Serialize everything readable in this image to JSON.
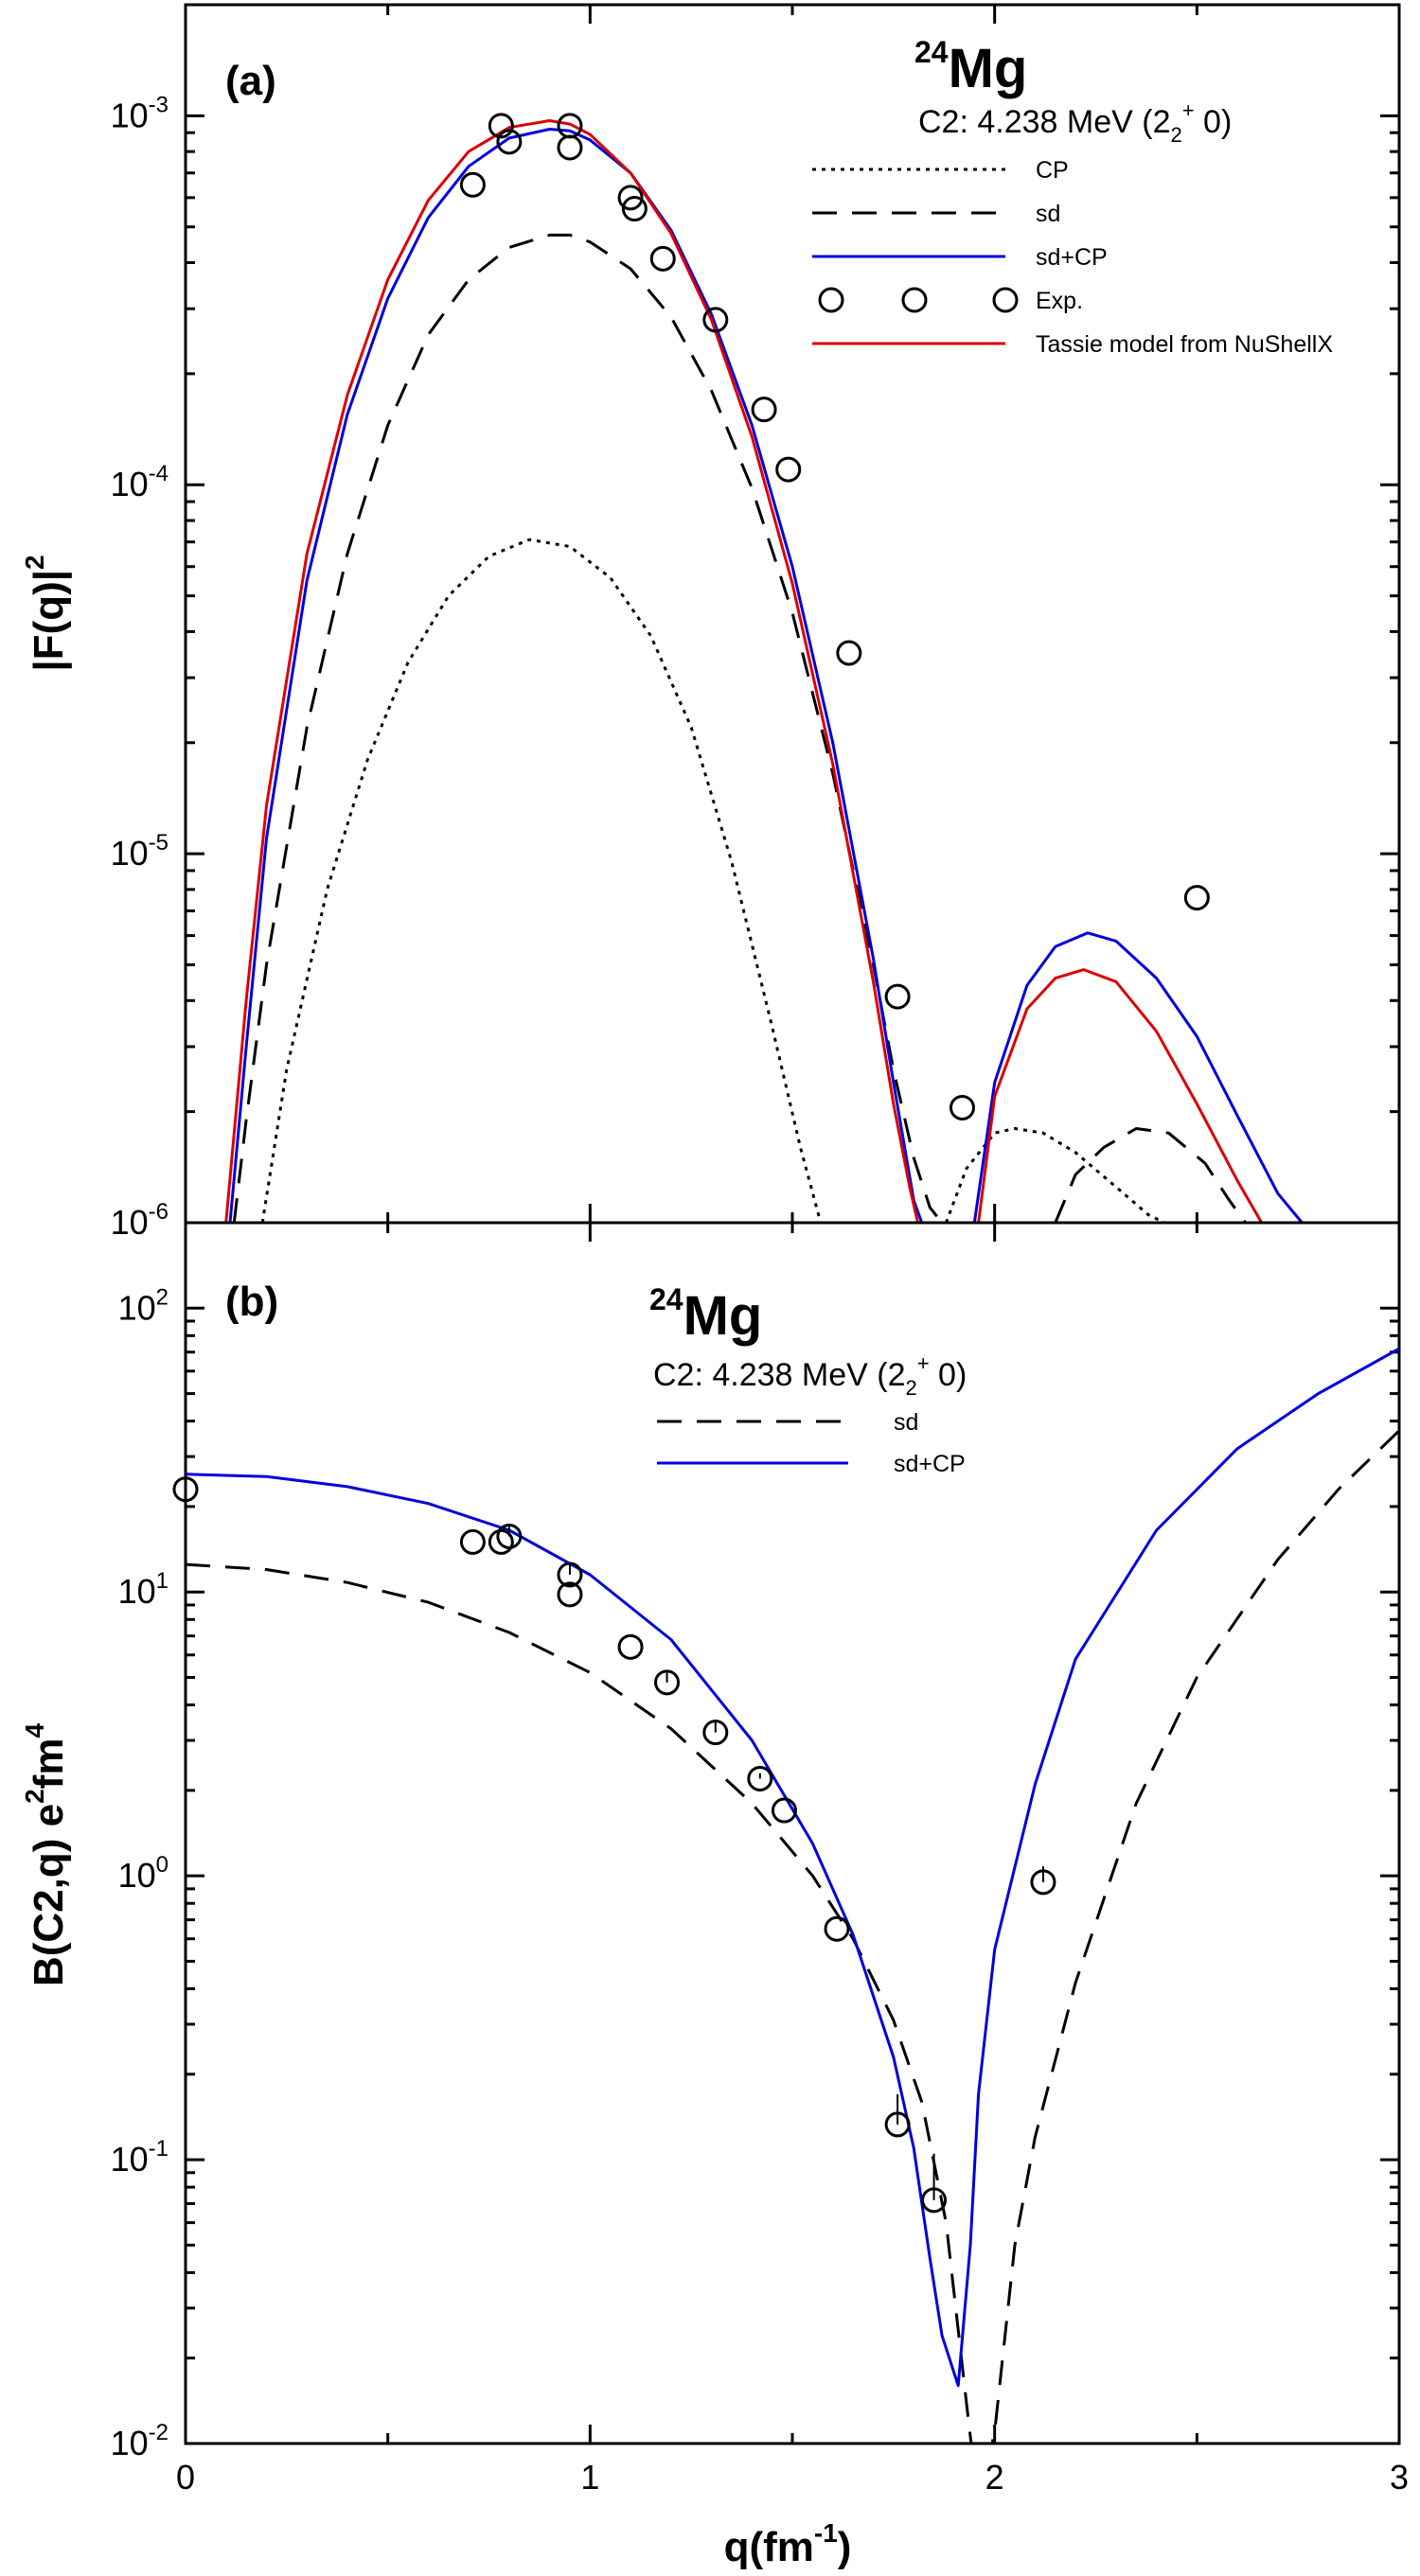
{
  "chart_data": [
    {
      "panel": "a",
      "type": "line",
      "panel_label": "(a)",
      "nucleus": {
        "mass_number": "24",
        "symbol": "Mg"
      },
      "transition": {
        "text": "C2: 4.238 MeV (2",
        "sub": "2",
        "sup": "+",
        "tail": " 0)"
      },
      "ylabel": {
        "main": "|F(q)|",
        "sup": "2"
      },
      "xlabel": "",
      "yscale": "log",
      "xlim": [
        0,
        3
      ],
      "ylim": [
        1e-06,
        0.002
      ],
      "y_ticks": [
        {
          "value": 0.001,
          "base": "10",
          "exp": "-3"
        },
        {
          "value": 0.0001,
          "base": "10",
          "exp": "-4"
        },
        {
          "value": 1e-05,
          "base": "10",
          "exp": "-5"
        },
        {
          "value": 1e-06,
          "base": "10",
          "exp": "-6"
        }
      ],
      "legend": [
        {
          "label": "CP",
          "style": "dotted",
          "color": "#000000"
        },
        {
          "label": "sd",
          "style": "dashed",
          "color": "#000000"
        },
        {
          "label": "sd+CP",
          "style": "solid",
          "color": "#0000dd"
        },
        {
          "label": "Exp.",
          "style": "markers",
          "color": "#000000"
        },
        {
          "label": "Tassie model from NuShellX",
          "style": "solid",
          "color": "#dd0000"
        }
      ],
      "series": [
        {
          "name": "CP",
          "style": "dotted",
          "color": "#000000",
          "x": [
            0.19,
            0.25,
            0.35,
            0.45,
            0.55,
            0.65,
            0.75,
            0.85,
            0.95,
            1.05,
            1.15,
            1.25,
            1.35,
            1.45,
            1.52,
            1.57
          ],
          "y": [
            1e-06,
            2.6e-06,
            8e-06,
            1.8e-05,
            3.3e-05,
            5e-05,
            6.4e-05,
            7.1e-05,
            6.8e-05,
            5.6e-05,
            3.9e-05,
            2.2e-05,
            9.5e-06,
            3.4e-06,
            1.6e-06,
            1e-06
          ]
        },
        {
          "name": "CP (second lobe)",
          "style": "dotted",
          "color": "#000000",
          "x": [
            1.88,
            1.93,
            2.0,
            2.05,
            2.12,
            2.2,
            2.3,
            2.38,
            2.42
          ],
          "y": [
            1e-06,
            1.4e-06,
            1.75e-06,
            1.8e-06,
            1.75e-06,
            1.55e-06,
            1.25e-06,
            1.05e-06,
            1e-06
          ]
        },
        {
          "name": "sd",
          "style": "dashed",
          "color": "#000000",
          "x": [
            0.12,
            0.15,
            0.2,
            0.3,
            0.4,
            0.5,
            0.6,
            0.7,
            0.8,
            0.9,
            0.95,
            1.0,
            1.1,
            1.2,
            1.3,
            1.4,
            1.5,
            1.6,
            1.7,
            1.75,
            1.8,
            1.84,
            1.87
          ],
          "y": [
            1e-06,
            1.9e-06,
            5e-06,
            2.2e-05,
            6.5e-05,
            0.000145,
            0.000255,
            0.00036,
            0.00044,
            0.000475,
            0.000475,
            0.000455,
            0.000385,
            0.000285,
            0.00018,
            9.8e-05,
            4.5e-05,
            1.65e-05,
            5e-06,
            2.6e-06,
            1.5e-06,
            1.1e-06,
            1e-06
          ]
        },
        {
          "name": "sd (second lobe)",
          "style": "dashed",
          "color": "#000000",
          "x": [
            2.15,
            2.2,
            2.27,
            2.35,
            2.43,
            2.52,
            2.58,
            2.62
          ],
          "y": [
            1e-06,
            1.35e-06,
            1.6e-06,
            1.8e-06,
            1.75e-06,
            1.45e-06,
            1.15e-06,
            1e-06
          ]
        },
        {
          "name": "sd+CP",
          "style": "solid",
          "color": "#0000dd",
          "x": [
            0.11,
            0.15,
            0.2,
            0.3,
            0.4,
            0.5,
            0.6,
            0.7,
            0.8,
            0.9,
            0.95,
            1.0,
            1.1,
            1.2,
            1.3,
            1.4,
            1.5,
            1.6,
            1.7,
            1.75,
            1.8,
            1.82
          ],
          "y": [
            1e-06,
            3e-06,
            1.1e-05,
            5.5e-05,
            0.000155,
            0.00032,
            0.00053,
            0.00073,
            0.00087,
            0.00092,
            0.00091,
            0.00086,
            0.0007,
            0.00049,
            0.00029,
            0.000145,
            6e-05,
            2e-05,
            5.2e-06,
            2.4e-06,
            1.15e-06,
            1e-06
          ]
        },
        {
          "name": "sd+CP (second lobe)",
          "style": "solid",
          "color": "#0000dd",
          "x": [
            1.95,
            2.0,
            2.08,
            2.15,
            2.23,
            2.3,
            2.4,
            2.5,
            2.6,
            2.7,
            2.76
          ],
          "y": [
            1e-06,
            2.4e-06,
            4.4e-06,
            5.6e-06,
            6.1e-06,
            5.8e-06,
            4.6e-06,
            3.2e-06,
            1.95e-06,
            1.2e-06,
            1e-06
          ]
        },
        {
          "name": "Tassie model from NuShellX",
          "style": "solid",
          "color": "#dd0000",
          "x": [
            0.1,
            0.15,
            0.2,
            0.3,
            0.4,
            0.5,
            0.6,
            0.7,
            0.8,
            0.9,
            0.95,
            1.0,
            1.1,
            1.2,
            1.3,
            1.4,
            1.5,
            1.6,
            1.7,
            1.75,
            1.79,
            1.81
          ],
          "y": [
            1e-06,
            4e-06,
            1.35e-05,
            6.5e-05,
            0.000175,
            0.00036,
            0.00059,
            0.0008,
            0.00093,
            0.00097,
            0.00095,
            0.00089,
            0.0007,
            0.00048,
            0.00028,
            0.000135,
            5.4e-05,
            1.75e-05,
            4.5e-06,
            2.1e-06,
            1.25e-06,
            1e-06
          ]
        },
        {
          "name": "Tassie model from NuShellX (second lobe)",
          "style": "solid",
          "color": "#dd0000",
          "x": [
            1.96,
            2.0,
            2.08,
            2.15,
            2.22,
            2.3,
            2.4,
            2.5,
            2.6,
            2.66
          ],
          "y": [
            1e-06,
            2.2e-06,
            3.8e-06,
            4.6e-06,
            4.85e-06,
            4.5e-06,
            3.3e-06,
            2.1e-06,
            1.3e-06,
            1e-06
          ]
        },
        {
          "name": "Exp.",
          "style": "markers",
          "color": "#000000",
          "x": [
            0.71,
            0.78,
            0.8,
            0.95,
            0.95,
            1.1,
            1.11,
            1.18,
            1.31,
            1.43,
            1.49,
            1.64,
            1.76,
            1.92,
            2.5
          ],
          "y": [
            0.00065,
            0.00094,
            0.00085,
            0.00094,
            0.00082,
            0.0006,
            0.00056,
            0.00041,
            0.00028,
            0.00016,
            0.00011,
            3.5e-05,
            4.1e-06,
            2.05e-06,
            7.6e-06
          ]
        }
      ]
    },
    {
      "panel": "b",
      "type": "line",
      "panel_label": "(b)",
      "nucleus": {
        "mass_number": "24",
        "symbol": "Mg"
      },
      "transition": {
        "text": "C2:  4.238 MeV (2",
        "sub": "2",
        "sup": "+",
        "tail": " 0)"
      },
      "ylabel": {
        "main": "B(C2,q) e",
        "sup1": "2",
        "mid": "fm",
        "sup2": "4"
      },
      "xlabel": {
        "main": "q(fm",
        "sup": "-1",
        "tail": ")"
      },
      "yscale": "log",
      "xlim": [
        0,
        3
      ],
      "ylim": [
        0.01,
        200
      ],
      "x_ticks": [
        "0",
        "1",
        "2",
        "3"
      ],
      "y_ticks": [
        {
          "value": 100,
          "base": "10",
          "exp": "2"
        },
        {
          "value": 10,
          "base": "10",
          "exp": "1"
        },
        {
          "value": 1,
          "base": "10",
          "exp": "0"
        },
        {
          "value": 0.1,
          "base": "10",
          "exp": "-1"
        },
        {
          "value": 0.01,
          "base": "10",
          "exp": "-2"
        }
      ],
      "legend": [
        {
          "label": "sd",
          "style": "dashed",
          "color": "#000000"
        },
        {
          "label": "sd+CP",
          "style": "solid",
          "color": "#0000dd"
        }
      ],
      "series": [
        {
          "name": "sd",
          "style": "dashed",
          "color": "#000000",
          "x": [
            0.0,
            0.2,
            0.4,
            0.6,
            0.8,
            1.0,
            1.2,
            1.4,
            1.55,
            1.65,
            1.75,
            1.82,
            1.88,
            1.93,
            1.96,
            2.0,
            2.05,
            2.1,
            2.2,
            2.35,
            2.5,
            2.7,
            2.85,
            3.0
          ],
          "y": [
            12.5,
            12.0,
            10.8,
            9.2,
            7.2,
            5.2,
            3.3,
            1.8,
            1.0,
            0.6,
            0.31,
            0.16,
            0.06,
            0.014,
            0.006,
            0.011,
            0.05,
            0.12,
            0.42,
            1.8,
            5.0,
            13.0,
            23.0,
            37.0
          ]
        },
        {
          "name": "sd+CP",
          "style": "solid",
          "color": "#0000dd",
          "x": [
            0.0,
            0.2,
            0.4,
            0.6,
            0.8,
            1.0,
            1.2,
            1.4,
            1.55,
            1.65,
            1.75,
            1.8,
            1.84,
            1.87,
            1.91,
            1.94,
            1.96,
            2.0,
            2.1,
            2.2,
            2.4,
            2.6,
            2.8,
            3.0
          ],
          "y": [
            26.0,
            25.5,
            23.5,
            20.5,
            16.5,
            11.5,
            6.8,
            3.0,
            1.3,
            0.62,
            0.23,
            0.11,
            0.045,
            0.024,
            0.016,
            0.05,
            0.17,
            0.55,
            2.1,
            5.8,
            16.5,
            32.0,
            50.0,
            72.0
          ]
        },
        {
          "name": "Exp.",
          "style": "markers",
          "color": "#000000",
          "x": [
            0.0,
            0.71,
            0.78,
            0.8,
            0.95,
            0.95,
            1.1,
            1.19,
            1.31,
            1.42,
            1.48,
            1.61,
            1.76,
            1.85,
            2.12
          ],
          "y": [
            23.0,
            15.0,
            15.0,
            15.7,
            11.5,
            9.8,
            6.4,
            4.8,
            3.2,
            2.2,
            1.7,
            0.65,
            0.133,
            0.072,
            0.95
          ],
          "error_high": [
            23.0,
            15.0,
            15.0,
            17.0,
            12.6,
            9.8,
            6.4,
            5.2,
            3.5,
            2.3,
            1.7,
            0.65,
            0.17,
            0.105,
            1.08
          ]
        }
      ]
    }
  ]
}
